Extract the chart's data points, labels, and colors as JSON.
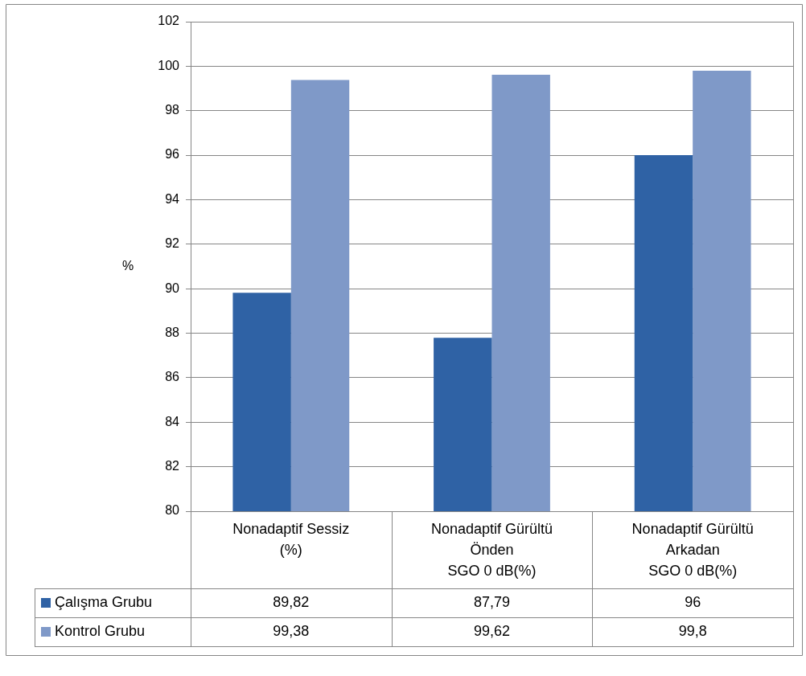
{
  "chart_data": {
    "type": "bar",
    "ylabel": "%",
    "categories": [
      "Nonadaptif Sessiz\n(%)",
      "Nonadaptif Gürültü\nÖnden\nSGO 0 dB(%)",
      "Nonadaptif Gürültü\nArkadan\nSGO 0 dB(%)"
    ],
    "series": [
      {
        "name": "Çalışma Grubu",
        "color": "#2f62a5",
        "values": [
          89.82,
          87.79,
          96
        ],
        "value_labels": [
          "89,82",
          "87,79",
          "96"
        ]
      },
      {
        "name": "Kontrol Grubu",
        "color": "#7f99c8",
        "values": [
          99.38,
          99.62,
          99.8
        ],
        "value_labels": [
          "99,38",
          "99,62",
          "99,8"
        ]
      }
    ],
    "ylim": [
      80,
      102
    ],
    "yticks": [
      80,
      82,
      84,
      86,
      88,
      90,
      92,
      94,
      96,
      98,
      100,
      102
    ],
    "grid": "y",
    "legend": "bottom"
  }
}
